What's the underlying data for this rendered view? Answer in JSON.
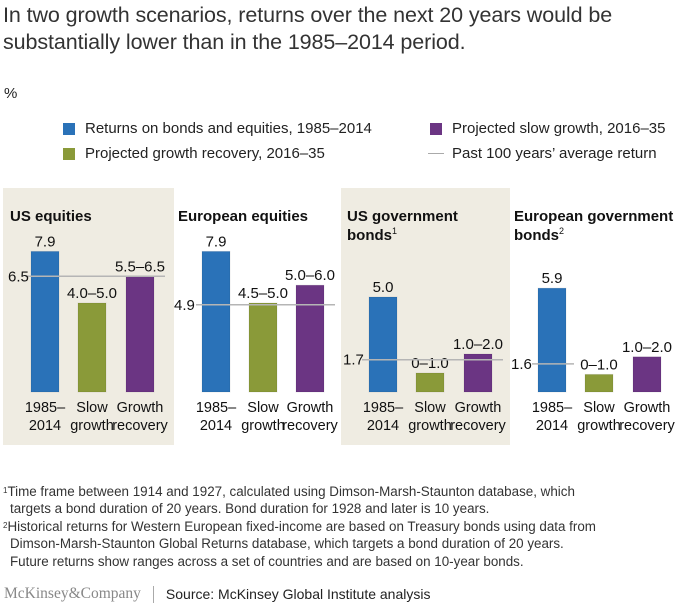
{
  "title": "In two growth scenarios, returns over the next 20 years would be substantially lower than in the 1985–2014 period.",
  "unit": "%",
  "legend": [
    {
      "label": "Returns on bonds and equities, 1985–2014",
      "type": "swatch",
      "color": "#2a72b8"
    },
    {
      "label": "Projected slow growth, 2016–35",
      "type": "swatch",
      "color": "#6b3583"
    },
    {
      "label": "Projected growth recovery, 2016–35",
      "type": "swatch",
      "color": "#8a9a39"
    },
    {
      "label": "Past 100 years’ average return",
      "type": "line",
      "color": "#aaaaaa"
    }
  ],
  "colors": {
    "historical": "#2a72b8",
    "slow": "#8a9a39",
    "recovery": "#6b3583",
    "average": "#b5b5b5",
    "panel_bg": "#efece2"
  },
  "chart_data": {
    "type": "bar",
    "title": "In two growth scenarios, returns over the next 20 years would be substantially lower than in the 1985–2014 period.",
    "ylabel": "%",
    "categories": [
      "1985–2014",
      "Slow growth",
      "Growth recovery"
    ],
    "panels": [
      {
        "title_lines": [
          "US equities"
        ],
        "footnote_ref": "",
        "historical": {
          "value": 7.9,
          "label": "7.9"
        },
        "slow_growth": {
          "range": [
            4.0,
            5.0
          ],
          "label": "4.0–5.0"
        },
        "growth_recovery": {
          "range": [
            5.5,
            6.5
          ],
          "label": "5.5–6.5"
        },
        "average_100y": {
          "value": 6.5,
          "label": "6.5"
        }
      },
      {
        "title_lines": [
          "European equities"
        ],
        "footnote_ref": "",
        "historical": {
          "value": 7.9,
          "label": "7.9"
        },
        "slow_growth": {
          "range": [
            4.5,
            5.0
          ],
          "label": "4.5–5.0"
        },
        "growth_recovery": {
          "range": [
            5.0,
            6.0
          ],
          "label": "5.0–6.0"
        },
        "average_100y": {
          "value": 4.9,
          "label": "4.9"
        }
      },
      {
        "title_lines": [
          "US government",
          "bonds"
        ],
        "footnote_ref": "1",
        "historical": {
          "value": 5.0,
          "label": "5.0"
        },
        "slow_growth": {
          "range": [
            0,
            1.0
          ],
          "label": "0–1.0"
        },
        "growth_recovery": {
          "range": [
            1.0,
            2.0
          ],
          "label": "1.0–2.0"
        },
        "average_100y": {
          "value": 1.7,
          "label": "1.7"
        }
      },
      {
        "title_lines": [
          "European government",
          "bonds"
        ],
        "footnote_ref": "2",
        "historical": {
          "value": 5.9,
          "label": "5.9"
        },
        "slow_growth": {
          "range": [
            0,
            1.0
          ],
          "label": "0–1.0"
        },
        "growth_recovery": {
          "range": [
            1.0,
            2.0
          ],
          "label": "1.0–2.0"
        },
        "average_100y": {
          "value": 1.6,
          "label": "1.6"
        }
      }
    ],
    "category_labels": [
      [
        "1985–",
        "2014"
      ],
      [
        "Slow",
        "growth"
      ],
      [
        "Growth",
        "recovery"
      ]
    ]
  },
  "footnotes": [
    {
      "mark": "1",
      "lines": [
        "Time frame between 1914 and 1927, calculated using Dimson-Marsh-Staunton database, which",
        "targets a bond duration of 20 years. Bond duration for 1928 and later is 10 years."
      ]
    },
    {
      "mark": "2",
      "lines": [
        "Historical returns for Western European fixed-income are based on Treasury bonds using data from",
        "Dimson-Marsh-Staunton Global Returns database, which targets a bond duration of 20 years.",
        "Future returns show ranges across a set of countries and are based on 10-year bonds."
      ]
    }
  ],
  "footer": {
    "brand": "McKinsey&Company",
    "source": "Source: McKinsey Global Institute analysis"
  }
}
